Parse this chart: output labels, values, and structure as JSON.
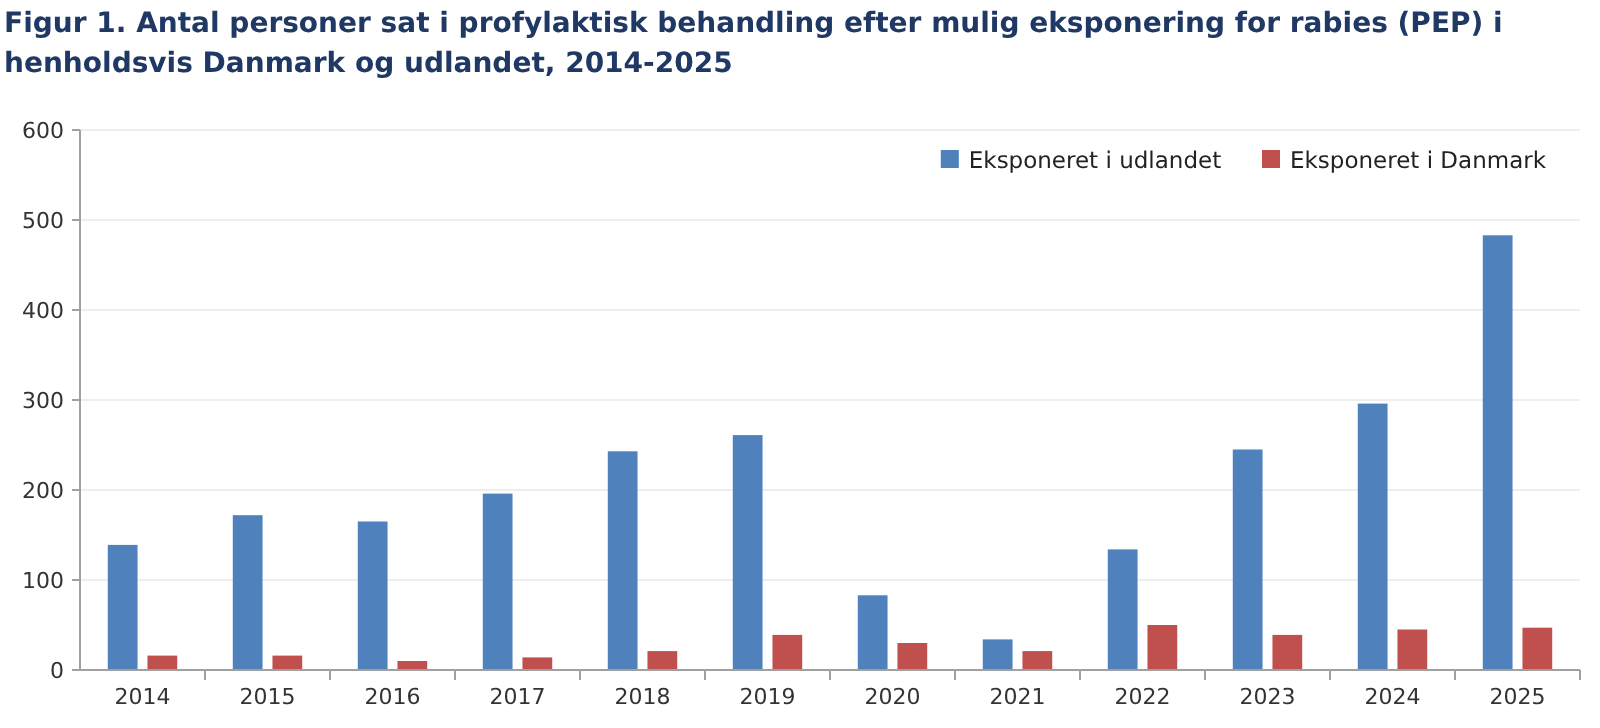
{
  "chart_data": {
    "type": "bar",
    "title": "Figur 1. Antal personer sat i profylaktisk  behandling efter mulig eksponering for rabies (PEP) i henholdsvis Danmark og udlandet, 2014-2025",
    "categories": [
      "2014",
      "2015",
      "2016",
      "2017",
      "2018",
      "2019",
      "2020",
      "2021",
      "2022",
      "2023",
      "2024",
      "2025"
    ],
    "series": [
      {
        "name": "Eksponeret i udlandet",
        "color": "#4f81bd",
        "values": [
          139,
          172,
          165,
          196,
          243,
          261,
          83,
          34,
          134,
          245,
          296,
          483
        ]
      },
      {
        "name": "Eksponeret i Danmark",
        "color": "#c0504d",
        "values": [
          16,
          16,
          10,
          14,
          21,
          39,
          30,
          21,
          50,
          39,
          45,
          47
        ]
      }
    ],
    "ylim": [
      0,
      600
    ],
    "yticks": [
      0,
      100,
      200,
      300,
      400,
      500,
      600
    ],
    "grid": "y",
    "legend": "top right"
  }
}
